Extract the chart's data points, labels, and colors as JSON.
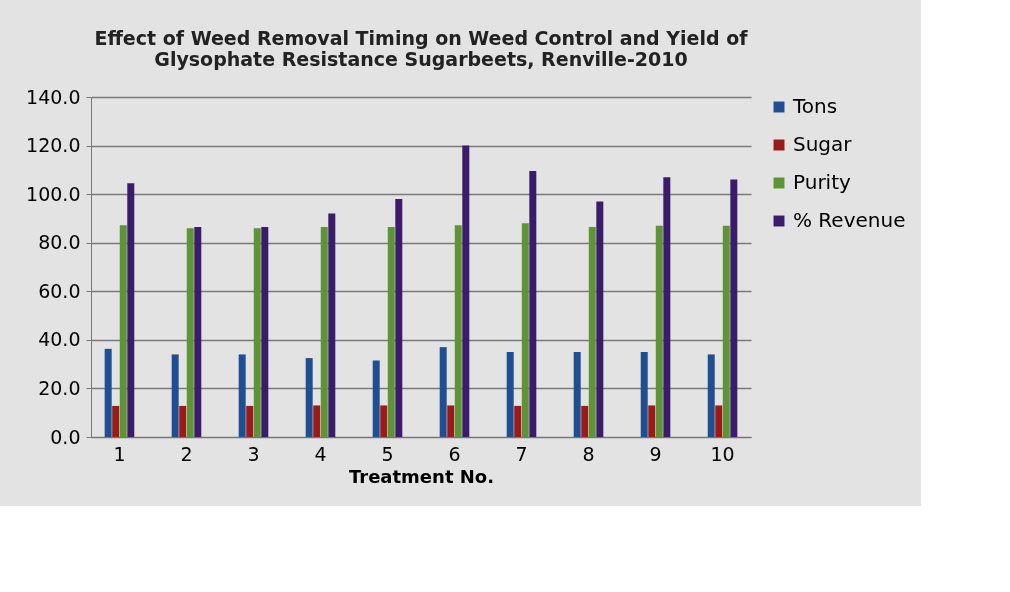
{
  "chart_data": {
    "type": "bar",
    "title": [
      "Effect of Weed Removal Timing on Weed Control and Yield of",
      "Glysophate Resistance Sugarbeets, Renville-2010"
    ],
    "xlabel": "Treatment No.",
    "categories": [
      "1",
      "2",
      "3",
      "4",
      "5",
      "6",
      "7",
      "8",
      "9",
      "10"
    ],
    "series": [
      {
        "name": "Tons",
        "color": "#1f4e91",
        "values": [
          36.3,
          34.0,
          34.0,
          32.5,
          31.5,
          37.0,
          35.0,
          35.0,
          35.0,
          34.0
        ]
      },
      {
        "name": "Sugar",
        "color": "#9b1b1b",
        "values": [
          12.8,
          12.8,
          12.8,
          13.0,
          13.0,
          13.0,
          12.8,
          12.8,
          13.0,
          13.0
        ]
      },
      {
        "name": " Purity",
        "color": "#5f9337",
        "values": [
          87.2,
          86.0,
          86.0,
          86.5,
          86.5,
          87.2,
          88.0,
          86.5,
          87.0,
          87.0
        ]
      },
      {
        "name": "% Revenue",
        "color": "#3b1c6b",
        "values": [
          104.5,
          86.5,
          86.5,
          92.0,
          98.0,
          120.0,
          109.5,
          97.0,
          107.0,
          106.0
        ]
      }
    ],
    "ylim": [
      0,
      140
    ],
    "yticks": [
      {
        "value": 0,
        "label": "0.0"
      },
      {
        "value": 20,
        "label": "20.0"
      },
      {
        "value": 40,
        "label": "40.0"
      },
      {
        "value": 60,
        "label": "60.0"
      },
      {
        "value": 80,
        "label": "80.0"
      },
      {
        "value": 100,
        "label": "100.0"
      },
      {
        "value": 120,
        "label": "120.0"
      },
      {
        "value": 140,
        "label": "140.0"
      }
    ],
    "grid": "y",
    "legend": "right"
  }
}
